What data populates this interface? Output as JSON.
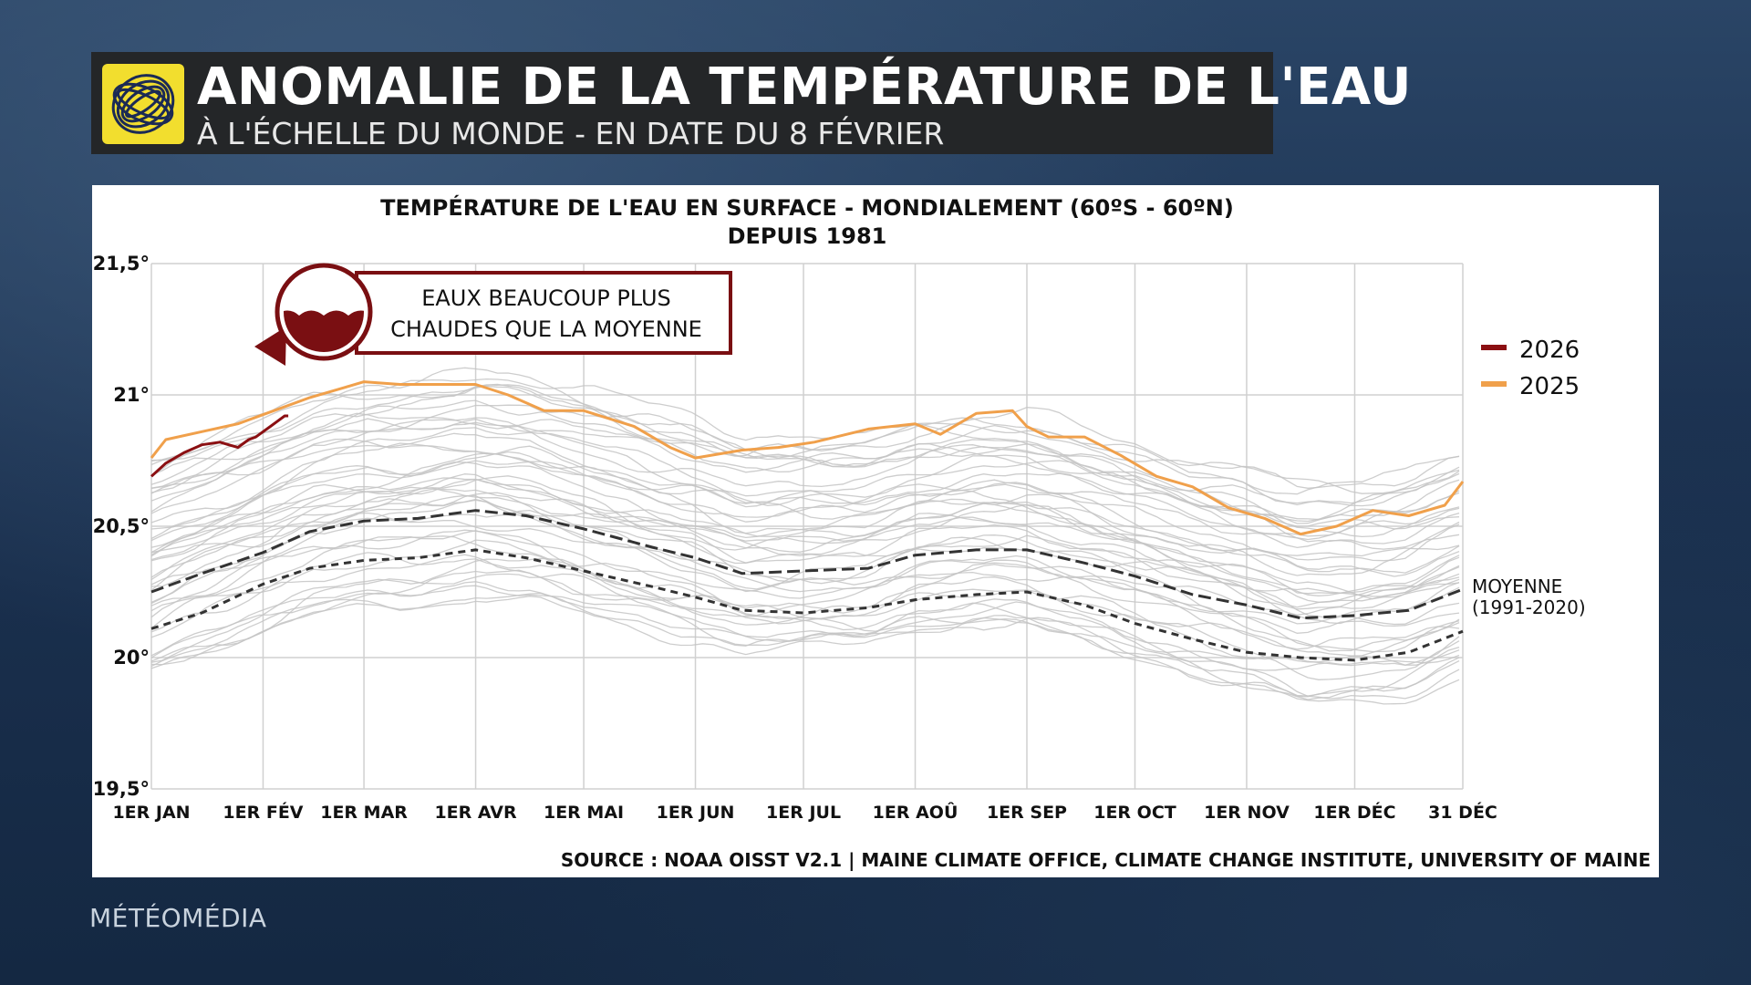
{
  "header": {
    "title": "ANOMALIE DE LA TEMPÉRATURE DE L'EAU",
    "subtitle": "À L'ÉCHELLE DU MONDE - EN DATE DU 8 FÉVRIER",
    "logo_icon": "globe-swirl-icon"
  },
  "brand": "MÉTÉOMÉDIA",
  "callout": {
    "line1": "EAUX BEAUCOUP PLUS",
    "line2": "CHAUDES QUE LA MOYENNE",
    "icon": "water-drop-icon",
    "color": "#7a0f12"
  },
  "chart_data": {
    "type": "line",
    "title": "TEMPÉRATURE DE L'EAU EN SURFACE - MONDIALEMENT (60ºS - 60ºN)",
    "subtitle": "DEPUIS 1981",
    "source": "SOURCE : NOAA OISST V2.1 | MAINE CLIMATE OFFICE, CLIMATE CHANGE INSTITUTE, UNIVERSITY OF MAINE",
    "x_ticks": [
      {
        "day": 1,
        "label": "1ER JAN"
      },
      {
        "day": 32,
        "label": "1ER FÉV"
      },
      {
        "day": 60,
        "label": "1ER MAR"
      },
      {
        "day": 91,
        "label": "1ER AVR"
      },
      {
        "day": 121,
        "label": "1ER MAI"
      },
      {
        "day": 152,
        "label": "1ER JUN"
      },
      {
        "day": 182,
        "label": "1ER JUL"
      },
      {
        "day": 213,
        "label": "1ER AOÛ"
      },
      {
        "day": 244,
        "label": "1ER SEP"
      },
      {
        "day": 274,
        "label": "1ER OCT"
      },
      {
        "day": 305,
        "label": "1ER NOV"
      },
      {
        "day": 335,
        "label": "1ER DÉC"
      },
      {
        "day": 365,
        "label": "31 DÉC"
      }
    ],
    "xlim": [
      1,
      365
    ],
    "ylim": [
      19.5,
      21.5
    ],
    "y_ticks": [
      {
        "value": 21.5,
        "label": "21,5°"
      },
      {
        "value": 21.0,
        "label": "21°"
      },
      {
        "value": 20.5,
        "label": "20,5°"
      },
      {
        "value": 20.0,
        "label": "20°"
      },
      {
        "value": 19.5,
        "label": "19,5°"
      }
    ],
    "grid": true,
    "legend": {
      "placement": "right",
      "entries": [
        {
          "label": "2026",
          "color": "#8b0f12"
        },
        {
          "label": "2025",
          "color": "#f0a04b"
        }
      ]
    },
    "mean_label_line1": "MOYENNE",
    "mean_label_line2": "(1991-2020)",
    "series": [
      {
        "name": "2026",
        "color": "#8b0f12",
        "style": "solid",
        "x": [
          1,
          5,
          10,
          15,
          20,
          25,
          28,
          30,
          32,
          34,
          36,
          38,
          39
        ],
        "y": [
          20.69,
          20.74,
          20.78,
          20.81,
          20.82,
          20.8,
          20.83,
          20.84,
          20.86,
          20.88,
          20.9,
          20.92,
          20.92
        ]
      },
      {
        "name": "2025",
        "color": "#f0a04b",
        "style": "solid",
        "x": [
          1,
          5,
          15,
          25,
          35,
          45,
          55,
          60,
          70,
          80,
          91,
          100,
          110,
          121,
          135,
          145,
          152,
          165,
          175,
          185,
          200,
          213,
          220,
          230,
          240,
          244,
          250,
          260,
          270,
          280,
          290,
          300,
          310,
          320,
          330,
          340,
          350,
          360,
          365
        ],
        "y": [
          20.76,
          20.83,
          20.86,
          20.89,
          20.94,
          20.99,
          21.03,
          21.05,
          21.04,
          21.04,
          21.04,
          21.0,
          20.94,
          20.94,
          20.88,
          20.8,
          20.76,
          20.79,
          20.8,
          20.82,
          20.87,
          20.89,
          20.85,
          20.93,
          20.94,
          20.88,
          20.84,
          20.84,
          20.77,
          20.69,
          20.65,
          20.57,
          20.53,
          20.47,
          20.5,
          20.56,
          20.54,
          20.58,
          20.67
        ]
      },
      {
        "name": "",
        "color": "#333333",
        "style": "dashed-long",
        "x": [
          1,
          15,
          32,
          45,
          60,
          75,
          91,
          105,
          121,
          140,
          152,
          165,
          182,
          200,
          213,
          230,
          244,
          260,
          274,
          290,
          305,
          320,
          335,
          350,
          365
        ],
        "y": [
          20.25,
          20.32,
          20.4,
          20.48,
          20.52,
          20.53,
          20.56,
          20.54,
          20.49,
          20.42,
          20.38,
          20.32,
          20.33,
          20.34,
          20.39,
          20.41,
          20.41,
          20.36,
          20.31,
          20.24,
          20.2,
          20.15,
          20.16,
          20.18,
          20.26
        ]
      },
      {
        "name": "",
        "color": "#333333",
        "style": "dashed-short",
        "x": [
          1,
          15,
          32,
          45,
          60,
          75,
          91,
          105,
          121,
          140,
          152,
          165,
          182,
          200,
          213,
          230,
          244,
          260,
          274,
          290,
          305,
          320,
          335,
          350,
          365
        ],
        "y": [
          20.11,
          20.17,
          20.28,
          20.34,
          20.37,
          20.38,
          20.41,
          20.38,
          20.33,
          20.27,
          20.23,
          20.18,
          20.17,
          20.19,
          20.22,
          20.24,
          20.25,
          20.2,
          20.13,
          20.07,
          20.02,
          20.0,
          19.99,
          20.02,
          20.1
        ]
      }
    ],
    "background_years": {
      "color": "#c4c4c4",
      "count": 44,
      "note": "annual curves since 1981 forming a grey envelope between about 19.7 and 21.1"
    }
  }
}
